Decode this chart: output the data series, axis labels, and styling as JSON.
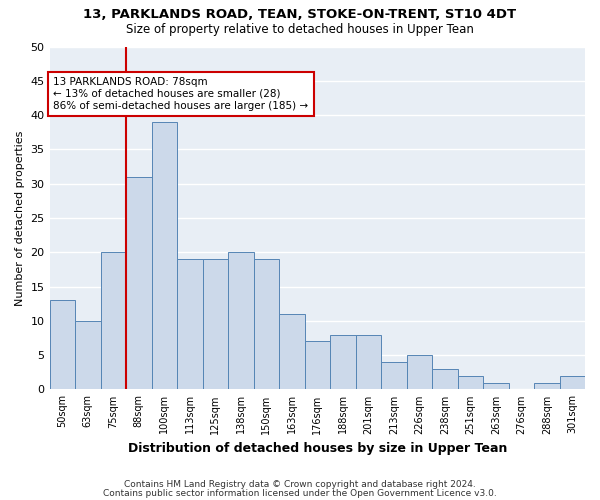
{
  "title1": "13, PARKLANDS ROAD, TEAN, STOKE-ON-TRENT, ST10 4DT",
  "title2": "Size of property relative to detached houses in Upper Tean",
  "xlabel": "Distribution of detached houses by size in Upper Tean",
  "ylabel": "Number of detached properties",
  "bin_labels": [
    "50sqm",
    "63sqm",
    "75sqm",
    "88sqm",
    "100sqm",
    "113sqm",
    "125sqm",
    "138sqm",
    "150sqm",
    "163sqm",
    "176sqm",
    "188sqm",
    "201sqm",
    "213sqm",
    "226sqm",
    "238sqm",
    "251sqm",
    "263sqm",
    "276sqm",
    "288sqm",
    "301sqm"
  ],
  "bar_heights": [
    13,
    10,
    20,
    31,
    39,
    19,
    19,
    20,
    19,
    11,
    7,
    8,
    8,
    4,
    5,
    3,
    2,
    1,
    0,
    1,
    2
  ],
  "bar_color": "#ccd9ea",
  "bar_edge_color": "#5585b5",
  "background_color": "#e8eef5",
  "grid_color": "#ffffff",
  "vline_color": "#cc0000",
  "vline_x_index": 2,
  "annotation_text": "13 PARKLANDS ROAD: 78sqm\n← 13% of detached houses are smaller (28)\n86% of semi-detached houses are larger (185) →",
  "annotation_box_color": "#ffffff",
  "annotation_box_edge_color": "#cc0000",
  "footer1": "Contains HM Land Registry data © Crown copyright and database right 2024.",
  "footer2": "Contains public sector information licensed under the Open Government Licence v3.0.",
  "ylim": [
    0,
    50
  ],
  "yticks": [
    0,
    5,
    10,
    15,
    20,
    25,
    30,
    35,
    40,
    45,
    50
  ]
}
